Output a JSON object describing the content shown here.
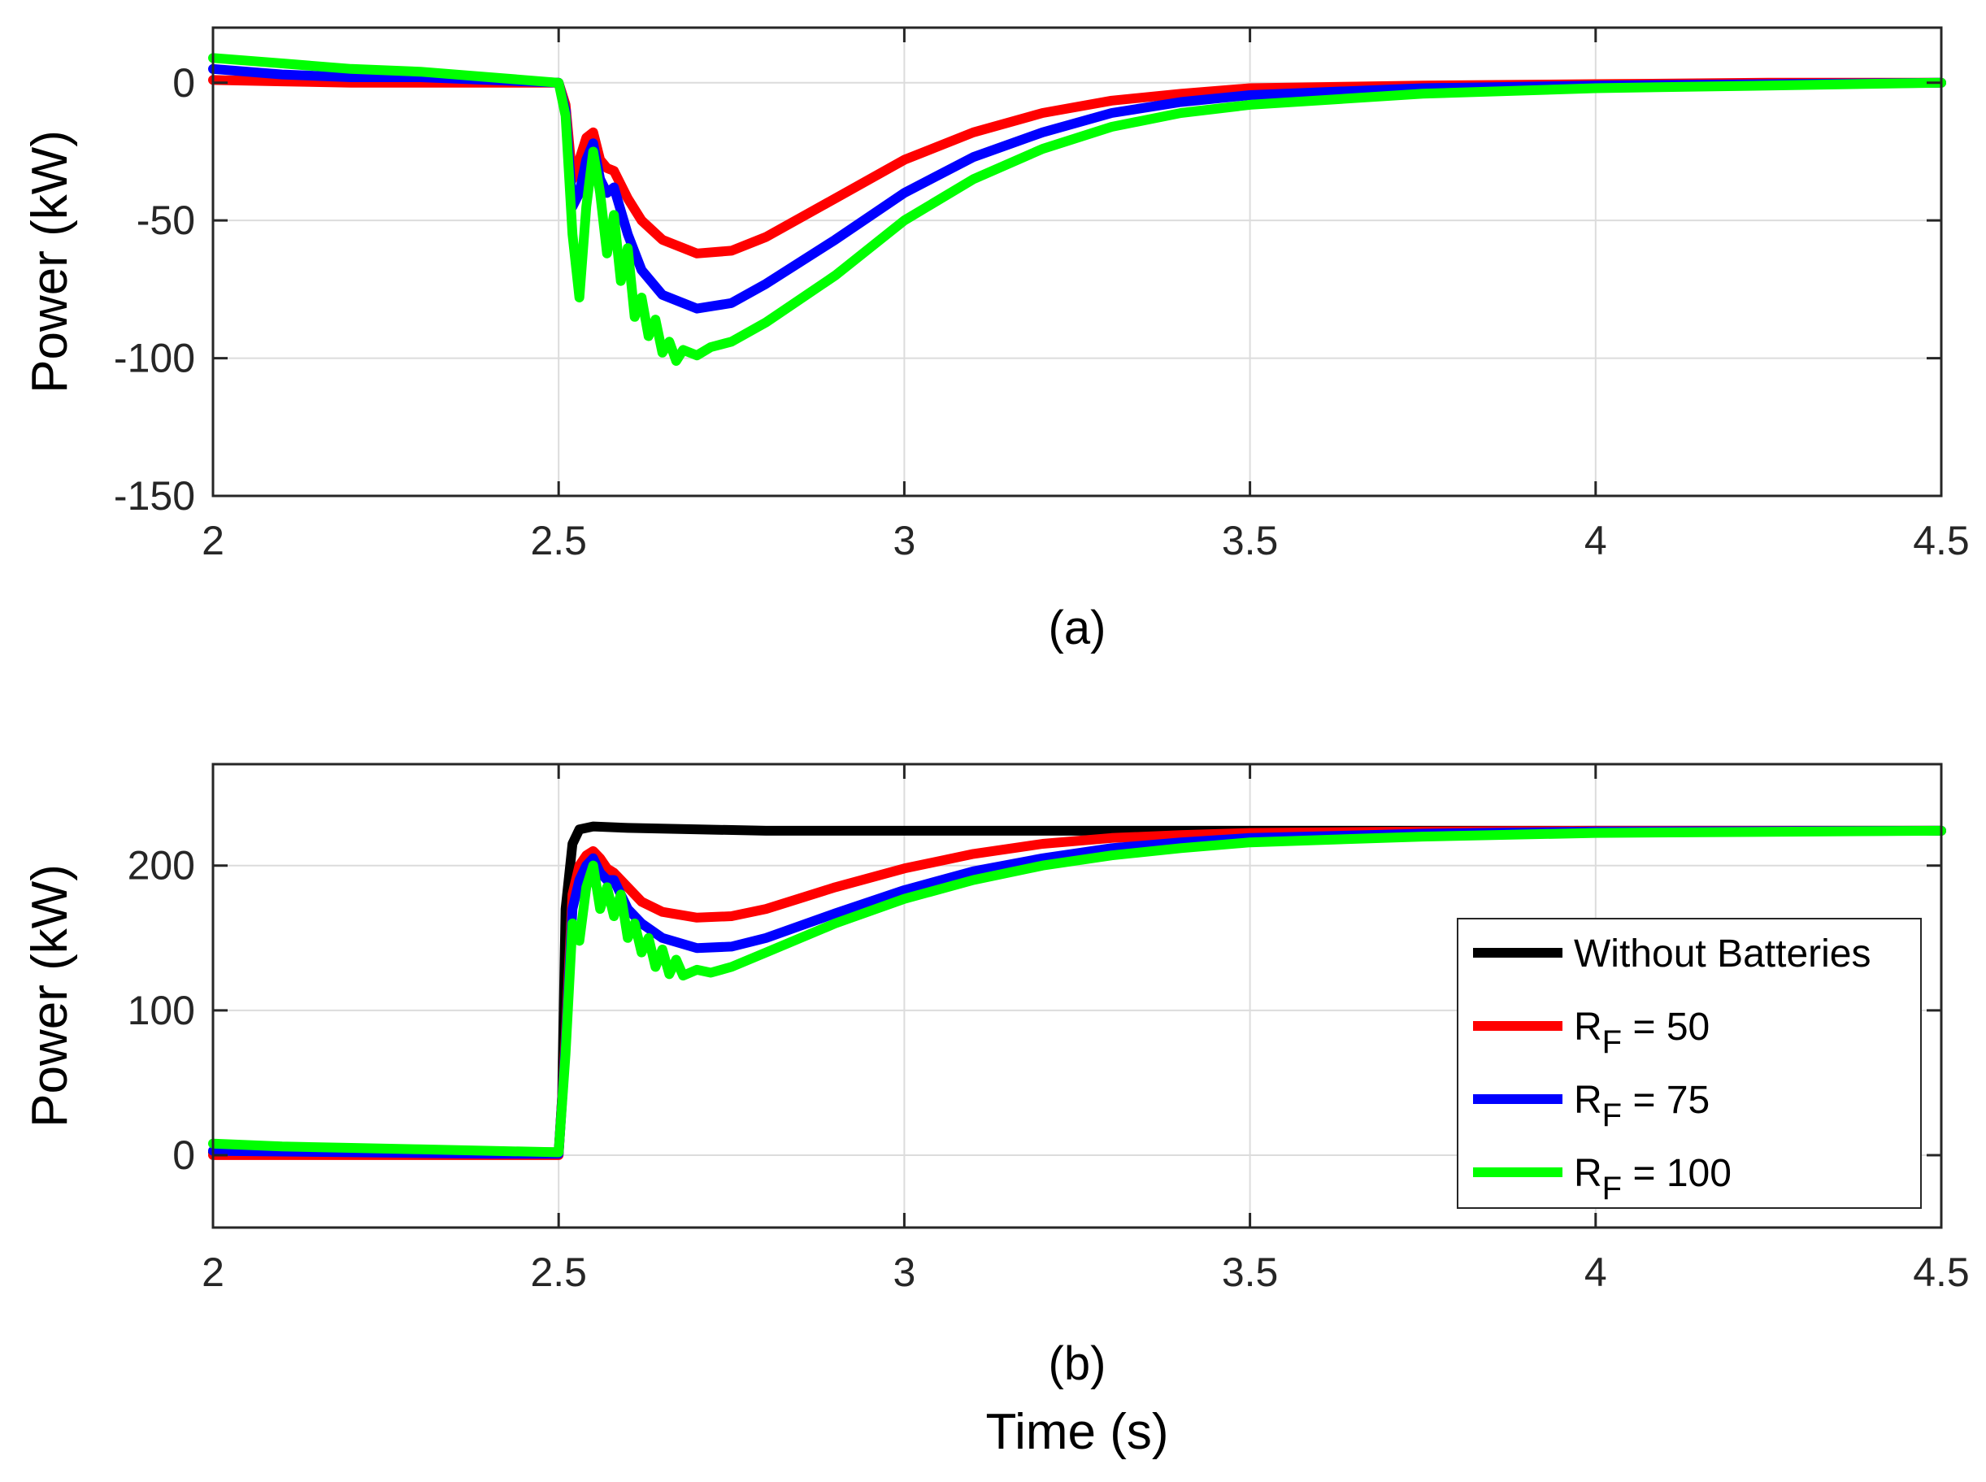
{
  "chart_data": [
    {
      "type": "line",
      "subtitle": "(a)",
      "ylabel": "Power (kW)",
      "xlabel": "",
      "xlim": [
        2,
        4.5
      ],
      "ylim": [
        -150,
        20
      ],
      "xticks": [
        "2",
        "2.5",
        "3",
        "3.5",
        "4",
        "4.5"
      ],
      "yticks": [
        "0",
        "-50",
        "-100",
        "-150"
      ],
      "grid": true,
      "series": [
        {
          "name": "RF = 50",
          "color": "#ff0000",
          "x": [
            2.0,
            2.1,
            2.2,
            2.3,
            2.4,
            2.5,
            2.51,
            2.52,
            2.53,
            2.54,
            2.55,
            2.56,
            2.57,
            2.58,
            2.6,
            2.62,
            2.65,
            2.7,
            2.75,
            2.8,
            2.9,
            3.0,
            3.1,
            3.2,
            3.3,
            3.4,
            3.5,
            3.75,
            4.0,
            4.25,
            4.5
          ],
          "y": [
            1,
            0.5,
            0,
            0,
            0,
            0,
            -8,
            -35,
            -28,
            -20,
            -18,
            -28,
            -31,
            -32,
            -42,
            -50,
            -57,
            -62,
            -61,
            -56,
            -42,
            -28,
            -18,
            -11,
            -6.5,
            -4,
            -2,
            -1,
            -0.5,
            0,
            0
          ]
        },
        {
          "name": "RF = 75",
          "color": "#0000ff",
          "x": [
            2.0,
            2.1,
            2.2,
            2.3,
            2.4,
            2.5,
            2.51,
            2.52,
            2.53,
            2.54,
            2.55,
            2.56,
            2.57,
            2.58,
            2.6,
            2.62,
            2.65,
            2.7,
            2.75,
            2.8,
            2.9,
            3.0,
            3.1,
            3.2,
            3.3,
            3.4,
            3.5,
            3.75,
            4.0,
            4.25,
            4.5
          ],
          "y": [
            5,
            3,
            2,
            2,
            1,
            0,
            -10,
            -45,
            -40,
            -28,
            -22,
            -35,
            -40,
            -38,
            -55,
            -68,
            -77,
            -82,
            -80,
            -73,
            -57,
            -40,
            -27,
            -18,
            -11,
            -7,
            -4.5,
            -2,
            -1,
            -0.5,
            0
          ]
        },
        {
          "name": "RF = 100",
          "color": "#00ff00",
          "x": [
            2.0,
            2.1,
            2.2,
            2.3,
            2.4,
            2.5,
            2.51,
            2.52,
            2.53,
            2.54,
            2.55,
            2.56,
            2.57,
            2.58,
            2.59,
            2.6,
            2.61,
            2.62,
            2.63,
            2.64,
            2.65,
            2.66,
            2.67,
            2.68,
            2.7,
            2.72,
            2.75,
            2.8,
            2.9,
            3.0,
            3.1,
            3.2,
            3.3,
            3.4,
            3.5,
            3.75,
            4.0,
            4.25,
            4.5
          ],
          "y": [
            9,
            7,
            5,
            4,
            2,
            0,
            -12,
            -55,
            -78,
            -45,
            -25,
            -40,
            -62,
            -48,
            -72,
            -60,
            -85,
            -78,
            -92,
            -86,
            -98,
            -94,
            -101,
            -97,
            -99,
            -96,
            -94,
            -87,
            -70,
            -50,
            -35,
            -24,
            -16,
            -11,
            -8,
            -4,
            -2,
            -1,
            0
          ]
        }
      ]
    },
    {
      "type": "line",
      "subtitle": "(b)",
      "ylabel": "Power (kW)",
      "xlabel": "Time (s)",
      "xlim": [
        2,
        4.5
      ],
      "ylim": [
        -50,
        270
      ],
      "xticks": [
        "2",
        "2.5",
        "3",
        "3.5",
        "4",
        "4.5"
      ],
      "yticks": [
        "0",
        "100",
        "200"
      ],
      "grid": true,
      "legend": {
        "placement": "lower-right",
        "entries": [
          {
            "label": "Without Batteries",
            "main": "Without Batteries",
            "sub": "",
            "rest": "",
            "color": "#000000"
          },
          {
            "label": "RF = 50",
            "main": "R",
            "sub": "F",
            "rest": " = 50",
            "color": "#ff0000"
          },
          {
            "label": "RF = 75",
            "main": "R",
            "sub": "F",
            "rest": " = 75",
            "color": "#0000ff"
          },
          {
            "label": "RF = 100",
            "main": "R",
            "sub": "F",
            "rest": " = 100",
            "color": "#00ff00"
          }
        ]
      },
      "series": [
        {
          "name": "Without Batteries",
          "color": "#000000",
          "x": [
            2.0,
            2.5,
            2.505,
            2.51,
            2.52,
            2.53,
            2.55,
            2.6,
            2.8,
            3.0,
            3.5,
            4.0,
            4.5
          ],
          "y": [
            2,
            2,
            40,
            170,
            215,
            225,
            227,
            226,
            224,
            224,
            224,
            224,
            224
          ]
        },
        {
          "name": "RF = 50",
          "color": "#ff0000",
          "x": [
            2.0,
            2.2,
            2.4,
            2.5,
            2.51,
            2.52,
            2.53,
            2.54,
            2.55,
            2.56,
            2.57,
            2.58,
            2.6,
            2.62,
            2.65,
            2.7,
            2.75,
            2.8,
            2.9,
            3.0,
            3.1,
            3.2,
            3.3,
            3.4,
            3.5,
            3.75,
            4.0,
            4.5
          ],
          "y": [
            0,
            0,
            0,
            0,
            80,
            180,
            200,
            207,
            210,
            205,
            198,
            195,
            185,
            175,
            168,
            164,
            165,
            170,
            185,
            198,
            208,
            215,
            219,
            221,
            222.5,
            223.5,
            224,
            224
          ]
        },
        {
          "name": "RF = 75",
          "color": "#0000ff",
          "x": [
            2.0,
            2.2,
            2.4,
            2.5,
            2.51,
            2.52,
            2.53,
            2.54,
            2.55,
            2.56,
            2.57,
            2.58,
            2.6,
            2.62,
            2.65,
            2.7,
            2.75,
            2.8,
            2.9,
            3.0,
            3.1,
            3.2,
            3.3,
            3.4,
            3.5,
            3.75,
            4.0,
            4.5
          ],
          "y": [
            3,
            2,
            1,
            1,
            75,
            170,
            190,
            200,
            205,
            195,
            190,
            190,
            170,
            160,
            150,
            143,
            144,
            150,
            167,
            183,
            196,
            205,
            212,
            216,
            219,
            222,
            223.5,
            224
          ]
        },
        {
          "name": "RF = 100",
          "color": "#00ff00",
          "x": [
            2.0,
            2.1,
            2.2,
            2.3,
            2.4,
            2.5,
            2.51,
            2.52,
            2.53,
            2.54,
            2.55,
            2.56,
            2.57,
            2.58,
            2.59,
            2.6,
            2.61,
            2.62,
            2.63,
            2.64,
            2.65,
            2.66,
            2.67,
            2.68,
            2.7,
            2.72,
            2.75,
            2.8,
            2.9,
            3.0,
            3.1,
            3.2,
            3.3,
            3.4,
            3.5,
            3.75,
            4.0,
            4.5
          ],
          "y": [
            8,
            6,
            5,
            4,
            3,
            2,
            70,
            160,
            148,
            185,
            200,
            170,
            185,
            165,
            180,
            150,
            160,
            140,
            150,
            130,
            142,
            125,
            135,
            124,
            128,
            126,
            130,
            140,
            160,
            177,
            190,
            200,
            207,
            212,
            216,
            220,
            222.5,
            224
          ]
        }
      ]
    }
  ]
}
